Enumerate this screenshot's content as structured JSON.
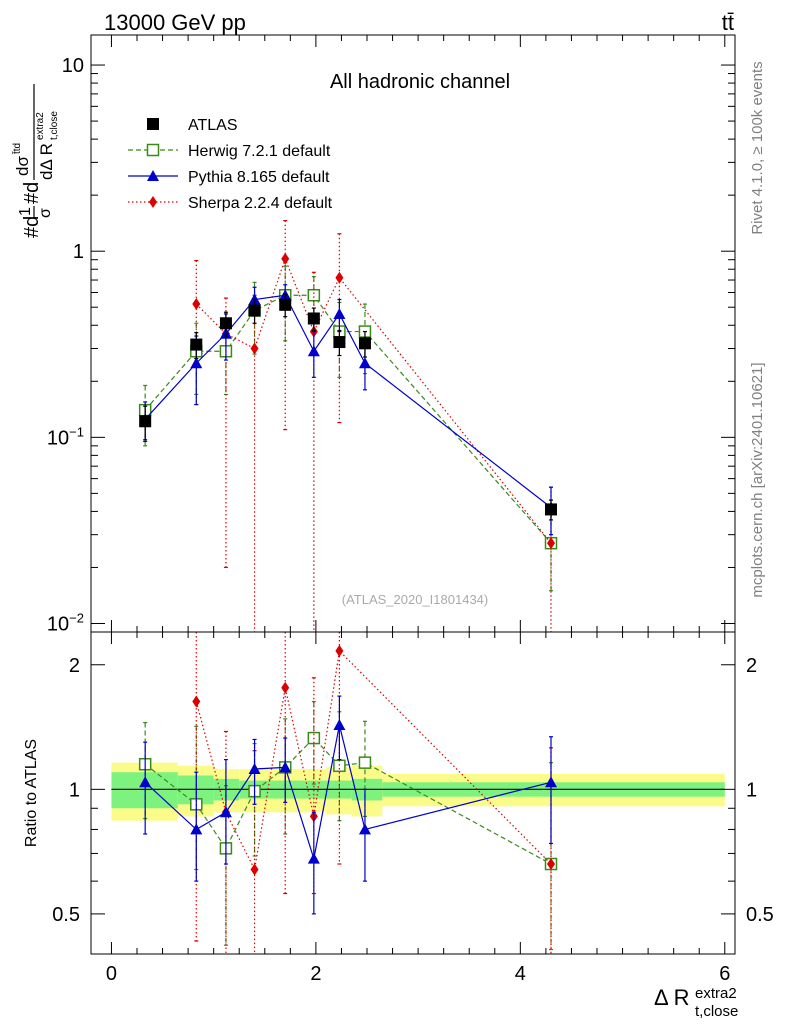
{
  "header": {
    "left_label": "13000 GeV pp",
    "right_label": "tt̄"
  },
  "side_labels": {
    "rivet": "Rivet 4.1.0, ≥ 100k events",
    "mcplots": "mcplots.cern.ch [arXiv:2401.10621]"
  },
  "colors": {
    "atlas": "#000000",
    "herwig": "#3a8a1a",
    "pythia": "#0000cc",
    "sherpa": "#dd0000",
    "band_green": "#7ef27e",
    "band_yellow": "#fbfb8a"
  },
  "chart_data": [
    {
      "type": "scatter",
      "title": "All hadronic channel",
      "watermark": "(ATLAS_2020_I1801434)",
      "ylabel_parts": {
        "sigma_sup": "t̄td",
        "r_super": "extra2",
        "r_sub": "t,close"
      },
      "yscale": "log",
      "ylim": [
        0.009,
        14.5
      ],
      "xlim": [
        -0.2,
        6.1
      ],
      "yticks": [
        {
          "value": 0.01,
          "label_base": "10",
          "label_exp": "−2"
        },
        {
          "value": 0.1,
          "label_base": "10",
          "label_exp": "−1"
        },
        {
          "value": 1,
          "label_base": "1",
          "label_exp": ""
        },
        {
          "value": 10,
          "label_base": "10",
          "label_exp": ""
        }
      ],
      "legend": [
        {
          "key": "atlas",
          "label": "ATLAS"
        },
        {
          "key": "herwig",
          "label": "Herwig 7.2.1 default"
        },
        {
          "key": "pythia",
          "label": "Pythia 8.165 default"
        },
        {
          "key": "sherpa",
          "label": "Sherpa 2.2.4 default"
        }
      ],
      "series": [
        {
          "name": "ATLAS",
          "key": "atlas",
          "x": [
            0.33,
            0.83,
            1.12,
            1.4,
            1.7,
            1.98,
            2.23,
            2.48,
            4.3
          ],
          "values": [
            0.122,
            0.315,
            0.41,
            0.48,
            0.515,
            0.435,
            0.325,
            0.32,
            0.041
          ],
          "err_up": [
            0.025,
            0.05,
            0.06,
            0.07,
            0.07,
            0.06,
            0.05,
            0.05,
            0.005
          ],
          "err_dn": [
            0.025,
            0.05,
            0.06,
            0.07,
            0.07,
            0.06,
            0.05,
            0.05,
            0.005
          ]
        },
        {
          "name": "Herwig 7.2.1 default",
          "key": "herwig",
          "x": [
            0.33,
            0.83,
            1.12,
            1.4,
            1.7,
            1.98,
            2.23,
            2.48,
            4.3
          ],
          "values": [
            0.14,
            0.29,
            0.29,
            0.48,
            0.58,
            0.58,
            0.37,
            0.37,
            0.027
          ],
          "err_up": [
            0.05,
            0.12,
            0.12,
            0.2,
            0.25,
            0.15,
            0.16,
            0.15,
            0.012
          ],
          "err_dn": [
            0.05,
            0.12,
            0.12,
            0.2,
            0.25,
            0.15,
            0.16,
            0.15,
            0.012
          ]
        },
        {
          "name": "Pythia 8.165 default",
          "key": "pythia",
          "x": [
            0.33,
            0.83,
            1.12,
            1.4,
            1.7,
            1.98,
            2.23,
            2.48,
            4.3
          ],
          "values": [
            0.125,
            0.25,
            0.36,
            0.55,
            0.58,
            0.29,
            0.46,
            0.25,
            0.042
          ],
          "err_up": [
            0.03,
            0.1,
            0.1,
            0.09,
            0.08,
            0.08,
            0.09,
            0.07,
            0.012
          ],
          "err_dn": [
            0.03,
            0.1,
            0.1,
            0.09,
            0.08,
            0.08,
            0.09,
            0.07,
            0.012
          ]
        },
        {
          "name": "Sherpa 2.2.4 default",
          "key": "sherpa",
          "x": [
            0.83,
            1.12,
            1.4,
            1.7,
            1.98,
            2.23,
            4.3
          ],
          "values": [
            0.52,
            0.36,
            0.3,
            0.91,
            0.37,
            0.72,
            0.027
          ],
          "err_up": [
            0.37,
            0.2,
            0.28,
            0.55,
            0.4,
            0.52,
            0.027
          ],
          "err_dn": [
            0.37,
            0.34,
            0.293,
            0.8,
            0.362,
            0.6,
            0.0265
          ]
        }
      ]
    },
    {
      "type": "scatter",
      "ylabel": "Ratio to ATLAS",
      "xlabel_parts": {
        "base": "Δ R",
        "super": "extra2",
        "sub": "t,close"
      },
      "xlim": [
        -0.2,
        6.1
      ],
      "ylim": [
        0.4,
        2.4
      ],
      "xticks": [
        0,
        2,
        4,
        6
      ],
      "yticks": [
        0.5,
        1,
        2
      ],
      "bands": {
        "edges": [
          0,
          0.65,
          1.0,
          1.25,
          1.55,
          1.85,
          2.1,
          2.35,
          2.65,
          6.0
        ],
        "green": [
          0.1,
          0.08,
          0.06,
          0.05,
          0.05,
          0.05,
          0.05,
          0.06,
          0.04
        ],
        "yellow": [
          0.16,
          0.14,
          0.12,
          0.12,
          0.12,
          0.12,
          0.13,
          0.14,
          0.09
        ]
      },
      "series": [
        {
          "name": "Herwig 7.2.1 default",
          "key": "herwig",
          "x": [
            0.33,
            0.83,
            1.12,
            1.4,
            1.7,
            1.98,
            2.23,
            2.48,
            4.3
          ],
          "values": [
            1.15,
            0.92,
            0.72,
            0.99,
            1.13,
            1.33,
            1.14,
            1.16,
            0.66
          ],
          "err_up": [
            0.3,
            0.5,
            0.3,
            0.3,
            0.35,
            0.3,
            0.4,
            0.3,
            0.5
          ],
          "err_dn": [
            0.3,
            0.28,
            0.3,
            0.3,
            0.35,
            0.3,
            0.3,
            0.3,
            0.25
          ]
        },
        {
          "name": "Pythia 8.165 default",
          "key": "pythia",
          "x": [
            0.33,
            0.83,
            1.12,
            1.4,
            1.7,
            1.98,
            2.23,
            2.48,
            4.3
          ],
          "values": [
            1.04,
            0.8,
            0.88,
            1.12,
            1.13,
            0.68,
            1.43,
            0.8,
            1.04
          ],
          "err_up": [
            0.26,
            0.3,
            0.3,
            0.2,
            0.2,
            0.2,
            0.25,
            0.2,
            0.3
          ],
          "err_dn": [
            0.26,
            0.2,
            0.22,
            0.2,
            0.2,
            0.18,
            0.25,
            0.2,
            0.3
          ]
        },
        {
          "name": "Sherpa 2.2.4 default",
          "key": "sherpa",
          "x": [
            0.83,
            1.12,
            1.4,
            1.7,
            1.98,
            2.23,
            4.3
          ],
          "values": [
            1.63,
            0.88,
            0.64,
            1.76,
            0.86,
            2.16,
            0.66
          ],
          "err_up": [
            1.2,
            0.5,
            0.6,
            1.2,
            1.0,
            1.5,
            0.6
          ],
          "err_dn": [
            1.2,
            0.5,
            0.3,
            1.2,
            0.3,
            1.5,
            0.3
          ]
        }
      ]
    }
  ]
}
